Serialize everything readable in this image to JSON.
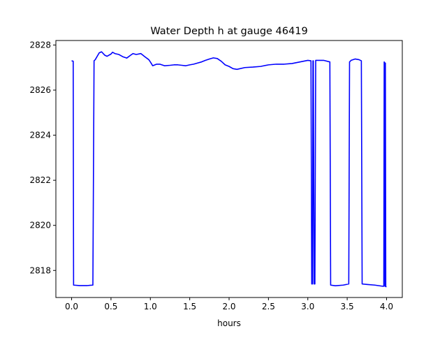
{
  "chart_data": {
    "type": "line",
    "title": "Water Depth h at gauge 46419",
    "xlabel": "hours",
    "ylabel": "",
    "xlim": [
      -0.2,
      4.2
    ],
    "ylim": [
      2816.8,
      2828.2
    ],
    "xticks": [
      0.0,
      0.5,
      1.0,
      1.5,
      2.0,
      2.5,
      3.0,
      3.5,
      4.0
    ],
    "xtick_labels": [
      "0.0",
      "0.5",
      "1.0",
      "1.5",
      "2.0",
      "2.5",
      "3.0",
      "3.5",
      "4.0"
    ],
    "yticks": [
      2818,
      2820,
      2822,
      2824,
      2826,
      2828
    ],
    "ytick_labels": [
      "2818",
      "2820",
      "2822",
      "2824",
      "2826",
      "2828"
    ],
    "grid": false,
    "series": [
      {
        "color": "#0000ff",
        "x": [
          0.0,
          0.02,
          0.025,
          0.1,
          0.2,
          0.27,
          0.285,
          0.3,
          0.35,
          0.38,
          0.42,
          0.45,
          0.5,
          0.52,
          0.55,
          0.6,
          0.65,
          0.7,
          0.75,
          0.78,
          0.82,
          0.88,
          0.93,
          0.98,
          1.0,
          1.03,
          1.08,
          1.12,
          1.18,
          1.25,
          1.3,
          1.35,
          1.4,
          1.45,
          1.5,
          1.55,
          1.6,
          1.65,
          1.7,
          1.75,
          1.8,
          1.85,
          1.9,
          1.95,
          2.0,
          2.05,
          2.1,
          2.2,
          2.3,
          2.4,
          2.5,
          2.6,
          2.7,
          2.8,
          2.9,
          3.0,
          3.04,
          3.05,
          3.06,
          3.065,
          3.07,
          3.08,
          3.09,
          3.1,
          3.11,
          3.12,
          3.2,
          3.28,
          3.29,
          3.35,
          3.45,
          3.52,
          3.53,
          3.55,
          3.6,
          3.65,
          3.68,
          3.69,
          3.75,
          3.85,
          3.95,
          3.965,
          3.97,
          3.975,
          3.98,
          3.985,
          3.99,
          4.0
        ],
        "y": [
          2827.3,
          2827.28,
          2817.35,
          2817.33,
          2817.33,
          2817.35,
          2827.3,
          2827.35,
          2827.65,
          2827.7,
          2827.55,
          2827.5,
          2827.6,
          2827.68,
          2827.62,
          2827.58,
          2827.48,
          2827.42,
          2827.55,
          2827.62,
          2827.58,
          2827.62,
          2827.48,
          2827.35,
          2827.25,
          2827.08,
          2827.15,
          2827.15,
          2827.08,
          2827.1,
          2827.12,
          2827.12,
          2827.1,
          2827.08,
          2827.12,
          2827.15,
          2827.2,
          2827.25,
          2827.32,
          2827.38,
          2827.43,
          2827.4,
          2827.28,
          2827.12,
          2827.05,
          2826.95,
          2826.92,
          2827.0,
          2827.02,
          2827.05,
          2827.12,
          2827.15,
          2827.15,
          2827.18,
          2827.25,
          2827.32,
          2827.3,
          2817.4,
          2817.4,
          2827.3,
          2827.3,
          2817.4,
          2817.4,
          2827.32,
          2827.32,
          2827.32,
          2827.32,
          2827.25,
          2817.35,
          2817.32,
          2817.35,
          2817.4,
          2827.25,
          2827.32,
          2827.38,
          2827.35,
          2827.3,
          2817.4,
          2817.38,
          2817.35,
          2817.3,
          2817.3,
          2827.25,
          2827.22,
          2817.3,
          2827.2,
          2817.28,
          2817.28
        ]
      }
    ]
  }
}
